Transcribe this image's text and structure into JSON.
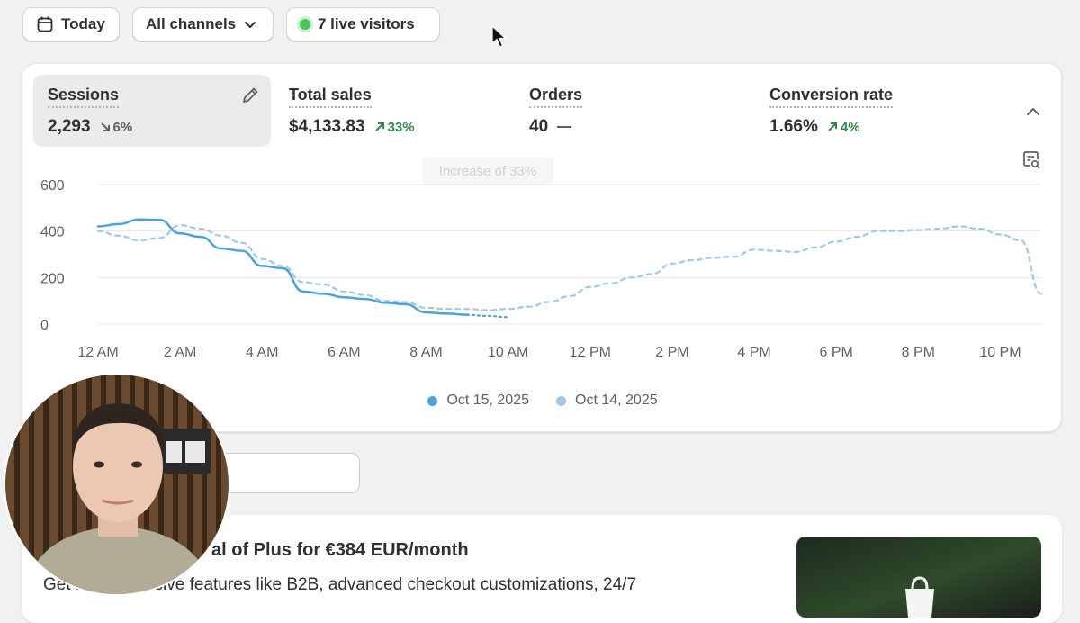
{
  "toolbar": {
    "date_label": "Today",
    "channel_label": "All channels",
    "live_label": "7 live visitors"
  },
  "metrics": [
    {
      "label": "Sessions",
      "value": "2,293",
      "change": "6%",
      "trend": "down"
    },
    {
      "label": "Total sales",
      "value": "$4,133.83",
      "change": "33%",
      "trend": "up"
    },
    {
      "label": "Orders",
      "value": "40",
      "change": "",
      "trend": "flat"
    },
    {
      "label": "Conversion rate",
      "value": "1.66%",
      "change": "4%",
      "trend": "up"
    }
  ],
  "tooltip_text": "Increase of 33%",
  "chart_data": {
    "type": "line",
    "y_ticks": [
      "600",
      "400",
      "200",
      "0"
    ],
    "ylim": [
      0,
      600
    ],
    "x_ticks": [
      "12 AM",
      "2 AM",
      "4 AM",
      "6 AM",
      "8 AM",
      "10 AM",
      "12 PM",
      "2 PM",
      "4 PM",
      "6 PM",
      "8 PM",
      "10 PM"
    ],
    "grid": true,
    "series": [
      {
        "name": "Oct 15, 2025",
        "color": "#4aa3df",
        "style": "solid",
        "x": [
          0,
          0.5,
          1,
          1.5,
          2,
          2.5,
          3,
          3.5,
          4,
          4.5,
          5,
          5.5,
          6,
          6.5,
          7,
          7.5,
          8,
          8.5,
          9
        ],
        "y": [
          420,
          430,
          450,
          448,
          390,
          375,
          325,
          315,
          250,
          240,
          140,
          130,
          115,
          108,
          92,
          85,
          50,
          45,
          40
        ]
      },
      {
        "name": "Oct 15, 2025 (incomplete)",
        "color": "#4aa3df",
        "style": "dotted",
        "x": [
          9,
          9.5,
          10
        ],
        "y": [
          40,
          35,
          30
        ]
      },
      {
        "name": "Oct 14, 2025",
        "color": "#9fc8ea",
        "style": "dashed",
        "x": [
          0,
          0.5,
          1,
          1.5,
          2,
          2.5,
          3,
          3.5,
          4,
          4.5,
          5,
          5.5,
          6,
          6.5,
          7,
          7.5,
          8,
          8.5,
          9,
          9.5,
          10,
          10.5,
          11,
          11.5,
          12,
          12.5,
          13,
          13.5,
          14,
          14.5,
          15,
          15.5,
          16,
          16.5,
          17,
          17.5,
          18,
          18.5,
          19,
          19.5,
          20,
          20.5,
          21,
          21.5,
          22,
          22.5,
          23
        ],
        "y": [
          400,
          380,
          360,
          370,
          425,
          410,
          380,
          350,
          280,
          250,
          180,
          170,
          140,
          125,
          100,
          95,
          70,
          65,
          65,
          60,
          65,
          75,
          95,
          120,
          160,
          175,
          200,
          215,
          260,
          275,
          285,
          290,
          320,
          315,
          310,
          330,
          355,
          375,
          400,
          400,
          405,
          410,
          420,
          410,
          385,
          360,
          130
        ]
      }
    ],
    "legend": [
      {
        "label": "Oct 15, 2025",
        "color": "#4aa3df"
      },
      {
        "label": "Oct 14, 2025",
        "color": "#9fc8ea"
      }
    ]
  },
  "promo": {
    "title": "al of Plus for €384 EUR/month",
    "description": "Get Plus-exclusive features like B2B, advanced checkout customizations, 24/7"
  },
  "colors": {
    "live": "#44c85b",
    "up": "#2e8a4d",
    "line_current": "#4aa3df",
    "line_previous": "#9fc8ea"
  }
}
